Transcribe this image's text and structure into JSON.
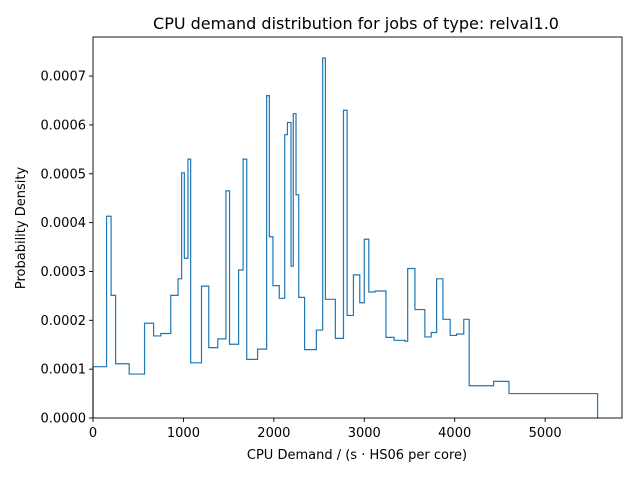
{
  "chart_data": {
    "type": "line",
    "style": "step-histogram",
    "title": "CPU demand distribution for jobs of type: relval1.0",
    "xlabel": "CPU Demand / (s · HS06 per core)",
    "ylabel": "Probability Density",
    "xlim": [
      0,
      5850
    ],
    "ylim": [
      0,
      0.00078
    ],
    "xticks": [
      0,
      1000,
      2000,
      3000,
      4000,
      5000
    ],
    "xtick_labels": [
      "0",
      "1000",
      "2000",
      "3000",
      "4000",
      "5000"
    ],
    "yticks": [
      0,
      0.0001,
      0.0002,
      0.0003,
      0.0004,
      0.0005,
      0.0006,
      0.0007
    ],
    "ytick_labels": [
      "0.0000",
      "0.0001",
      "0.0002",
      "0.0003",
      "0.0004",
      "0.0005",
      "0.0006",
      "0.0007"
    ],
    "grid": false,
    "line_color": "#1f77b4",
    "bin_edges": [
      0,
      150,
      200,
      250,
      400,
      570,
      670,
      750,
      860,
      940,
      980,
      1010,
      1050,
      1080,
      1200,
      1280,
      1380,
      1470,
      1510,
      1610,
      1660,
      1700,
      1820,
      1920,
      1950,
      1990,
      2060,
      2120,
      2150,
      2190,
      2215,
      2245,
      2275,
      2340,
      2470,
      2540,
      2570,
      2680,
      2770,
      2810,
      2880,
      2950,
      3000,
      3050,
      3120,
      3240,
      3330,
      3450,
      3480,
      3560,
      3670,
      3740,
      3800,
      3870,
      3950,
      4020,
      4100,
      4160,
      4430,
      4600,
      5580
    ],
    "densities": [
      0.000105,
      0.000413,
      0.000251,
      0.000111,
      9e-05,
      0.000194,
      0.000168,
      0.000173,
      0.000251,
      0.000285,
      0.000502,
      0.000327,
      0.00053,
      0.000113,
      0.00027,
      0.000144,
      0.000162,
      0.000465,
      0.000151,
      0.000303,
      0.00053,
      0.00012,
      0.000141,
      0.00066,
      0.000371,
      0.000271,
      0.000245,
      0.00058,
      0.000605,
      0.000311,
      0.000623,
      0.000457,
      0.000247,
      0.00014,
      0.00018,
      0.000737,
      0.000243,
      0.000163,
      0.00063,
      0.00021,
      0.000293,
      0.000236,
      0.000366,
      0.000258,
      0.00026,
      0.000165,
      0.000159,
      0.000157,
      0.000306,
      0.000222,
      0.000166,
      0.000175,
      0.000285,
      0.000202,
      0.000169,
      0.000172,
      0.000202,
      6.6e-05,
      7.5e-05,
      5e-05
    ]
  }
}
